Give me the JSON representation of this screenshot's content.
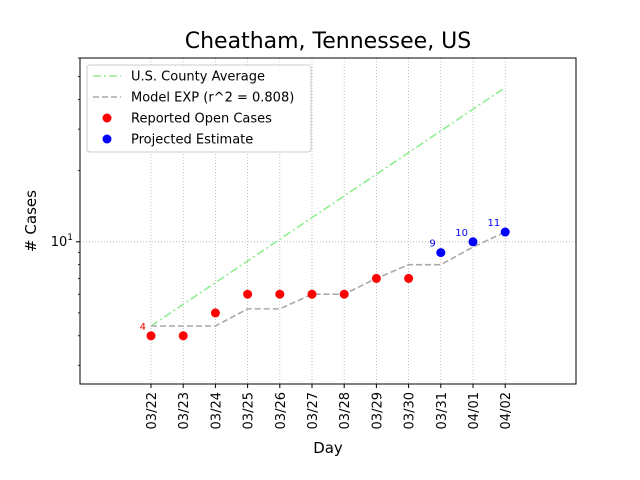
{
  "chart_data": {
    "type": "line",
    "title": "Cheatham, Tennessee, US",
    "xlabel": "Day",
    "ylabel": "# Cases",
    "yscale": "log",
    "ylim": [
      2.5,
      60
    ],
    "categories": [
      "03/22",
      "03/23",
      "03/24",
      "03/25",
      "03/26",
      "03/27",
      "03/28",
      "03/29",
      "03/30",
      "03/31",
      "04/01",
      "04/02"
    ],
    "y_tick_label": "10",
    "grid": "dotted, at x ticks and y=10",
    "legend_position": "top-left",
    "series": [
      {
        "name": "U.S. County Average",
        "style": "dash-dot line",
        "color": "#90ee90",
        "x": [
          "03/22",
          "04/02"
        ],
        "values": [
          4.4,
          45
        ]
      },
      {
        "name": "Model EXP (r^2 = 0.808)",
        "style": "dashed line",
        "color": "#a9a9a9",
        "x": [
          "03/22",
          "03/23",
          "03/24",
          "03/25",
          "03/26",
          "03/27",
          "03/28",
          "03/29",
          "03/30",
          "03/31",
          "04/01",
          "04/02"
        ],
        "values": [
          4.4,
          4.4,
          4.4,
          5.2,
          5.2,
          6,
          6,
          7,
          8,
          8,
          9.5,
          11
        ]
      },
      {
        "name": "Reported Open Cases",
        "style": "markers",
        "color": "#ff0000",
        "x": [
          "03/22",
          "03/23",
          "03/24",
          "03/25",
          "03/26",
          "03/27",
          "03/28",
          "03/29",
          "03/30"
        ],
        "values": [
          4,
          4,
          5,
          6,
          6,
          6,
          6,
          7,
          7
        ]
      },
      {
        "name": "Projected Estimate",
        "style": "markers",
        "color": "#0000ff",
        "x": [
          "03/31",
          "04/01",
          "04/02"
        ],
        "values": [
          9,
          10,
          11
        ]
      }
    ],
    "annotations": [
      {
        "x": "03/22",
        "y": 4,
        "text": "4",
        "color": "#ff0000"
      },
      {
        "x": "03/31",
        "y": 9,
        "text": "9",
        "color": "#0000ff"
      },
      {
        "x": "04/01",
        "y": 10,
        "text": "10",
        "color": "#0000ff"
      },
      {
        "x": "04/02",
        "y": 11,
        "text": "11",
        "color": "#0000ff"
      }
    ]
  }
}
